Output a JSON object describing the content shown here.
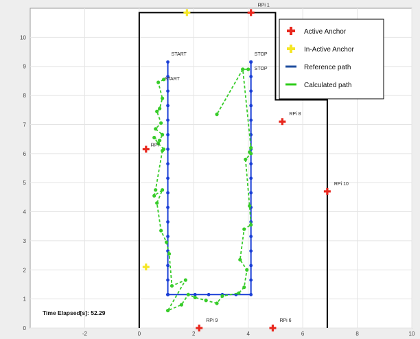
{
  "chart_data": {
    "type": "scatter",
    "title": "",
    "xlabel": "",
    "ylabel": "",
    "xlim": [
      -4,
      10
    ],
    "ylim": [
      0,
      11
    ],
    "x_ticks": [
      "-2",
      "0",
      "2",
      "4",
      "6",
      "8",
      "10"
    ],
    "y_ticks": [
      "0",
      "1",
      "2",
      "3",
      "4",
      "5",
      "6",
      "7",
      "8",
      "9",
      "10"
    ],
    "grid": true,
    "legend_position": "top-right",
    "legend": [
      {
        "label": "Active Anchor",
        "marker": "plus",
        "color": "#e8281e"
      },
      {
        "label": "In-Active Anchor",
        "marker": "plus",
        "color": "#f5e626"
      },
      {
        "label": "Reference path",
        "marker": "line",
        "color": "#1f4e9e"
      },
      {
        "label": "Calculated path",
        "marker": "line",
        "color": "#2ecc1a"
      }
    ],
    "boundary": [
      [
        0,
        0
      ],
      [
        0,
        10.85
      ],
      [
        5,
        10.85
      ],
      [
        5,
        7.85
      ],
      [
        6.9,
        7.85
      ],
      [
        6.9,
        0
      ]
    ],
    "active_anchors": [
      {
        "label": "RPi 1",
        "x": 4.1,
        "y": 10.85
      },
      {
        "label": "RPi 8",
        "x": 5.25,
        "y": 7.1
      },
      {
        "label": "RPi 10",
        "x": 6.9,
        "y": 4.7
      },
      {
        "label": "RPi 9",
        "x": 2.2,
        "y": 0
      },
      {
        "label": "RPi 6",
        "x": 4.9,
        "y": 0
      },
      {
        "label": "RPi",
        "x": 0.25,
        "y": 6.15
      }
    ],
    "inactive_anchors": [
      {
        "x": 1.75,
        "y": 10.85
      },
      {
        "x": 0.25,
        "y": 2.1
      }
    ],
    "reference_path": {
      "x": [
        1.05,
        1.05,
        1.05,
        1.05,
        1.05,
        1.05,
        1.05,
        1.05,
        1.05,
        1.05,
        1.05,
        1.05,
        1.05,
        1.05,
        1.05,
        1.05,
        1.05,
        1.05,
        1.05,
        1.05,
        1.05,
        2.05,
        2.55,
        3.05,
        3.55,
        4.1,
        4.1,
        4.1,
        4.1,
        4.1,
        4.1,
        4.1,
        4.1,
        4.1,
        4.1,
        4.1,
        4.1,
        4.1,
        4.1,
        4.1,
        4.1,
        4.1,
        4.1,
        4.1,
        4.1
      ],
      "y": [
        9.15,
        8.65,
        8.15,
        7.65,
        7.15,
        6.65,
        6.15,
        5.65,
        5.15,
        4.65,
        4.15,
        3.65,
        3.15,
        2.65,
        2.15,
        1.65,
        1.15,
        1.15,
        1.15,
        1.15,
        1.15,
        1.15,
        1.15,
        1.15,
        1.15,
        1.15,
        1.65,
        2.15,
        2.65,
        3.15,
        3.65,
        4.15,
        4.65,
        5.15,
        5.65,
        6.15,
        6.65,
        7.15,
        7.65,
        8.15,
        8.65,
        9.15,
        9.15,
        9.15,
        9.15
      ]
    },
    "calculated_path": {
      "x": [
        0.9,
        0.7,
        0.85,
        0.75,
        0.65,
        0.8,
        0.6,
        0.85,
        0.75,
        0.55,
        0.7,
        0.9,
        0.85,
        0.6,
        0.55,
        0.85,
        0.65,
        0.8,
        1.0,
        1.1,
        1.2,
        1.7,
        1.05,
        1.55,
        1.8,
        2.05,
        2.45,
        2.85,
        3.05,
        3.65,
        3.85,
        3.95,
        3.7,
        3.85,
        4.1,
        4.05,
        3.9,
        4.1,
        4.05,
        4.1,
        3.8,
        2.85,
        3.8,
        4.0
      ],
      "y": [
        8.55,
        8.45,
        7.9,
        7.55,
        7.45,
        7.05,
        6.85,
        6.65,
        6.45,
        6.55,
        6.35,
        6.15,
        6.1,
        4.75,
        4.55,
        4.75,
        4.3,
        3.35,
        2.95,
        2.55,
        1.45,
        1.65,
        0.6,
        0.8,
        1.15,
        1.05,
        0.95,
        0.85,
        1.1,
        1.2,
        1.4,
        2.0,
        2.35,
        3.4,
        3.55,
        4.2,
        5.8,
        6.0,
        6.05,
        6.2,
        8.9,
        7.35,
        8.9,
        8.9
      ]
    },
    "annotations": [
      {
        "text": "START",
        "x": 1.1,
        "y": 9.3
      },
      {
        "text": "START",
        "x": 0.85,
        "y": 8.45
      },
      {
        "text": "STOP",
        "x": 4.15,
        "y": 9.3
      },
      {
        "text": "STOP",
        "x": 4.15,
        "y": 8.8
      }
    ]
  },
  "time_label": "Time Elapsed[s]: 52.29"
}
